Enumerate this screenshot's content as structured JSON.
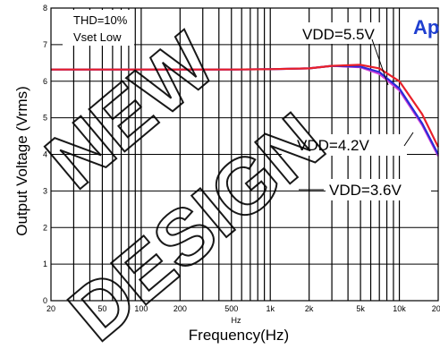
{
  "brand_text": "Ap",
  "watermark": [
    "NEW",
    "DESIGN"
  ],
  "chart_data": {
    "type": "line",
    "xlabel": "Frequency(Hz)",
    "xunit_mark": "Hz",
    "ylabel": "Output Voltage (Vrms)",
    "xscale": "log",
    "xlim": [
      20,
      20000
    ],
    "ylim": [
      0,
      8
    ],
    "grid": true,
    "x_ticks": [
      {
        "value": 20,
        "label": "20"
      },
      {
        "value": 50,
        "label": "50"
      },
      {
        "value": 100,
        "label": "100"
      },
      {
        "value": 200,
        "label": "200"
      },
      {
        "value": 500,
        "label": "500"
      },
      {
        "value": 1000,
        "label": "1k"
      },
      {
        "value": 2000,
        "label": "2k"
      },
      {
        "value": 5000,
        "label": "5k"
      },
      {
        "value": 10000,
        "label": "10k"
      },
      {
        "value": 20000,
        "label": "20k"
      }
    ],
    "y_ticks": [
      0,
      1,
      2,
      3,
      4,
      5,
      6,
      7,
      8
    ],
    "annotations": [
      "THD=10%",
      "Vset Low"
    ],
    "series": [
      {
        "name": "VDD=5.5V",
        "color": "#e8202a",
        "x": [
          20,
          50,
          100,
          200,
          500,
          1000,
          2000,
          3000,
          5000,
          7000,
          10000,
          15000,
          20000
        ],
        "y": [
          6.32,
          6.32,
          6.32,
          6.32,
          6.32,
          6.33,
          6.35,
          6.42,
          6.45,
          6.35,
          6.0,
          5.1,
          4.2
        ]
      },
      {
        "name": "VDD=4.2V",
        "color": "#2a2ad8",
        "x": [
          20,
          50,
          100,
          200,
          500,
          1000,
          2000,
          3000,
          5000,
          7000,
          10000,
          15000,
          20000
        ],
        "y": [
          6.32,
          6.32,
          6.32,
          6.32,
          6.32,
          6.33,
          6.35,
          6.42,
          6.4,
          6.25,
          5.8,
          4.85,
          4.0
        ]
      },
      {
        "name": "VDD=3.6V",
        "color": "#d040d8",
        "x": [
          20,
          50,
          100,
          200,
          500,
          1000,
          2000,
          3000,
          5000,
          7000,
          10000,
          15000,
          20000
        ],
        "y": [
          6.32,
          6.32,
          6.32,
          6.32,
          6.32,
          6.33,
          6.35,
          6.42,
          6.38,
          6.2,
          5.75,
          4.8,
          3.95
        ]
      }
    ]
  }
}
